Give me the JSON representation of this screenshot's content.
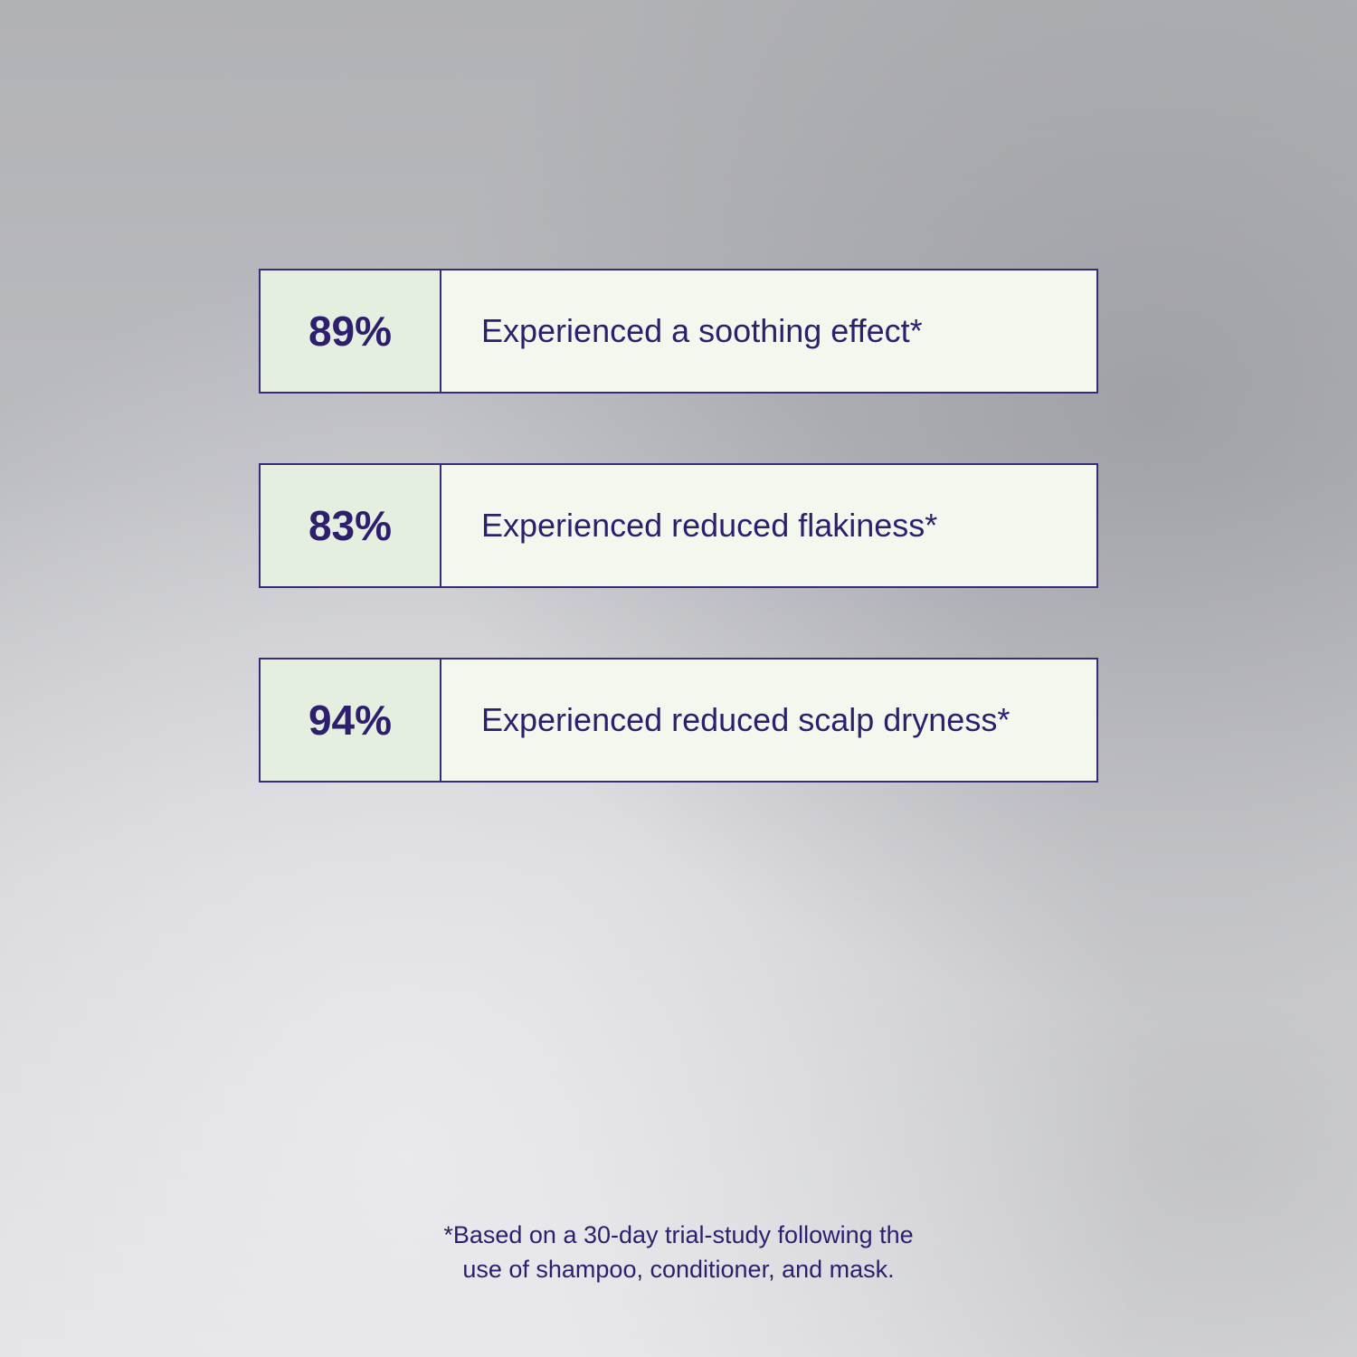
{
  "stats": [
    {
      "value": "89%",
      "label": "Experienced a soothing effect*"
    },
    {
      "value": "83%",
      "label": "Experienced reduced flakiness*"
    },
    {
      "value": "94%",
      "label": "Experienced reduced scalp dryness*"
    }
  ],
  "footnote": {
    "line1": "*Based on a 30-day trial-study following the",
    "line2": "use of shampoo, conditioner, and mask."
  },
  "colors": {
    "text": "#2e1f6e",
    "border": "#3a2a7a",
    "value_bg": "#e4efe0",
    "label_bg": "#f3f8ef"
  }
}
